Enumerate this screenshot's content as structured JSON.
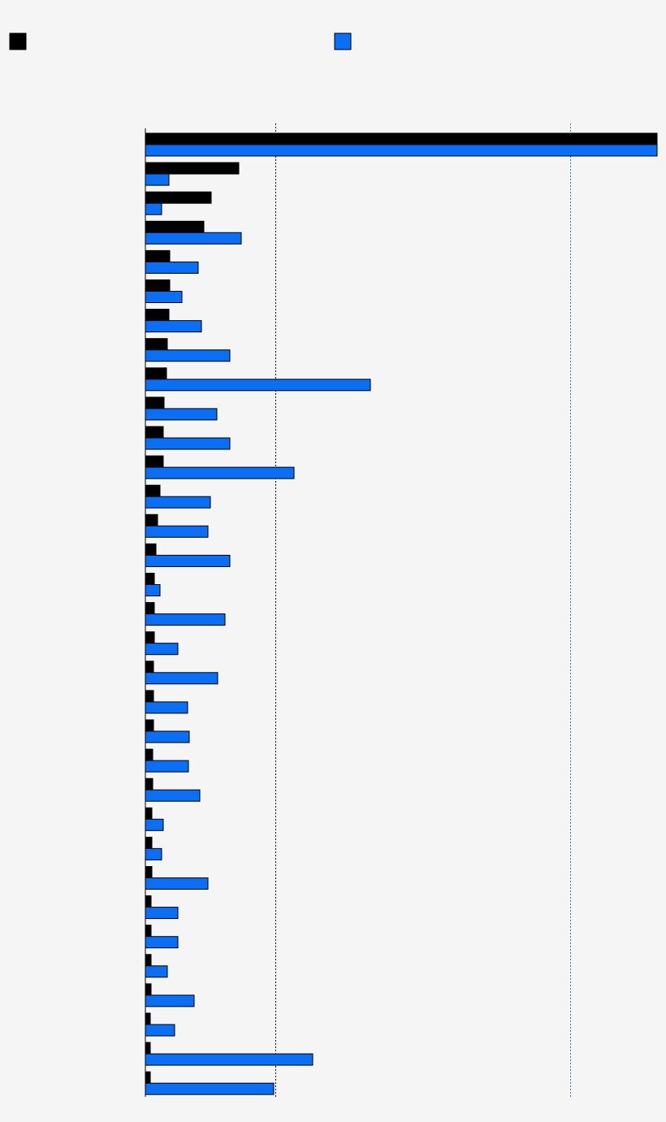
{
  "chart_data": {
    "type": "bar",
    "orientation": "horizontal",
    "legend": {
      "placement": "top",
      "entries": [
        {
          "color": "#000000"
        },
        {
          "color": "#0a6ff5"
        }
      ]
    },
    "xlim": [
      0,
      630
    ],
    "reference_lines": [
      {
        "value": 160,
        "color": "#000000",
        "style": "dotted"
      },
      {
        "value": 523,
        "color": "#2f7fe6",
        "style": "dotted"
      }
    ],
    "series": [
      {
        "color": "#000000",
        "values": [
          630,
          115,
          81,
          72,
          30,
          30,
          29,
          27,
          26,
          23,
          22,
          22,
          18,
          15,
          13,
          11,
          11,
          11,
          10,
          10,
          10,
          9,
          9,
          8,
          8,
          8,
          7,
          7,
          7,
          7,
          6,
          6,
          6
        ]
      },
      {
        "color": "#0a6ff5",
        "values": [
          630,
          29,
          20,
          118,
          65,
          45,
          69,
          104,
          277,
          88,
          104,
          183,
          80,
          77,
          104,
          18,
          98,
          40,
          89,
          52,
          54,
          53,
          67,
          22,
          20,
          77,
          40,
          40,
          27,
          60,
          36,
          206,
          158
        ]
      }
    ],
    "grid": false
  }
}
